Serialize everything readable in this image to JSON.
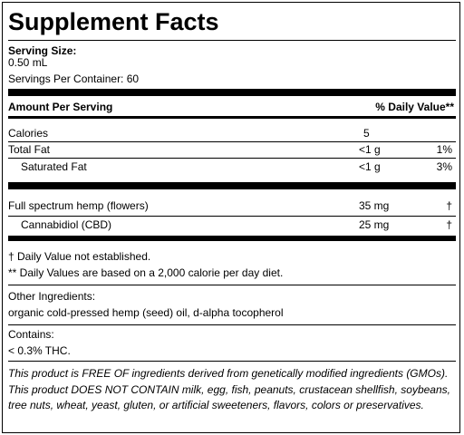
{
  "title": "Supplement Facts",
  "serving": {
    "size_label": "Serving Size:",
    "size": "0.50 mL",
    "servings": "Servings Per Container: 60"
  },
  "table": {
    "header": {
      "name": "Amount Per Serving",
      "dv": "% Daily Value**"
    },
    "rows": [
      {
        "name": "Calories",
        "amount": "5"
      },
      {
        "name": "Total Fat",
        "amount": "<1 g",
        "dv": "1%"
      },
      {
        "name": "Saturated Fat",
        "amount": "<1 g",
        "dv": "3%"
      }
    ],
    "blend": [
      {
        "name": "Full spectrum hemp (flowers)",
        "amount": "35 mg",
        "dv": "†"
      },
      {
        "name": "Cannabidiol (CBD)",
        "amount": "25 mg",
        "dv": "†"
      }
    ]
  },
  "notes": [
    "† Daily Value not established.",
    "** Daily Values are based on a 2,000 calorie per day diet."
  ],
  "ingredients": {
    "label": "Other Ingredients:",
    "text": "organic cold-pressed hemp (seed) oil, d-alpha tocopherol"
  },
  "contains": {
    "label": "Contains:",
    "text": "< 0.3% THC."
  },
  "disclaimer": "This product is FREE OF ingredients derived from genetically modified ingredients (GMOs). This product DOES NOT CONTAIN milk, egg, fish, peanuts, crustacean shellfish, soybeans, tree nuts, wheat, yeast, gluten, or artificial sweeteners, flavors, colors or preservatives."
}
